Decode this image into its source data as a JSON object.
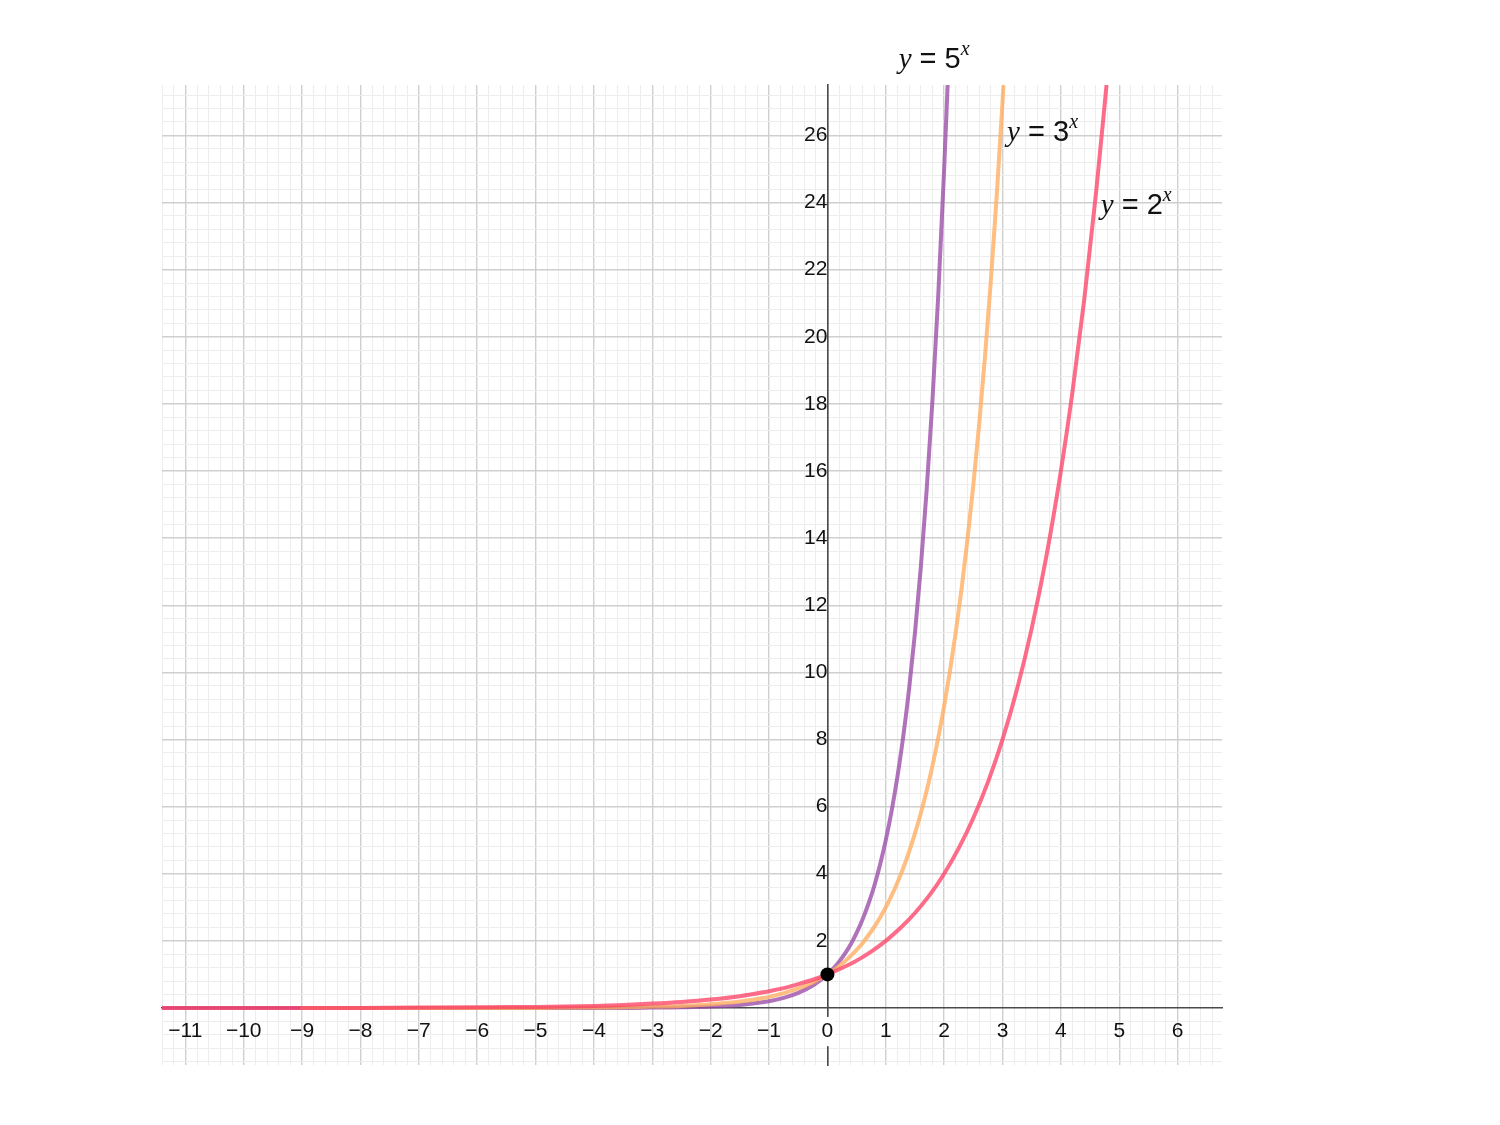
{
  "chart_data": {
    "type": "line",
    "xlim": [
      -11.4,
      6.76
    ],
    "ylim": [
      -1.7,
      27.5
    ],
    "xticks": [
      {
        "value": -11.4,
        "label": null
      },
      {
        "value": -11.2,
        "label": null
      },
      {
        "value": -11,
        "label": "−11"
      },
      {
        "value": -10.8,
        "label": null
      },
      {
        "value": -10.6,
        "label": null
      },
      {
        "value": -10.4,
        "label": null
      },
      {
        "value": -10.2,
        "label": null
      },
      {
        "value": -10,
        "label": "−10"
      },
      {
        "value": -9.8,
        "label": null
      },
      {
        "value": -9.6,
        "label": null
      },
      {
        "value": -9.4,
        "label": null
      },
      {
        "value": -9.2,
        "label": null
      },
      {
        "value": -9,
        "label": "−9"
      },
      {
        "value": -8.8,
        "label": null
      },
      {
        "value": -8.6,
        "label": null
      },
      {
        "value": -8.4,
        "label": null
      },
      {
        "value": -8.2,
        "label": null
      },
      {
        "value": -8,
        "label": "−8"
      },
      {
        "value": -7.8,
        "label": null
      },
      {
        "value": -7.6,
        "label": null
      },
      {
        "value": -7.4,
        "label": null
      },
      {
        "value": -7.2,
        "label": null
      },
      {
        "value": -7,
        "label": "−7"
      },
      {
        "value": -6.8,
        "label": null
      },
      {
        "value": -6.6,
        "label": null
      },
      {
        "value": -6.4,
        "label": null
      },
      {
        "value": -6.2,
        "label": null
      },
      {
        "value": -6,
        "label": "−6"
      },
      {
        "value": -5.8,
        "label": null
      },
      {
        "value": -5.6,
        "label": null
      },
      {
        "value": -5.4,
        "label": null
      },
      {
        "value": -5.2,
        "label": null
      },
      {
        "value": -5,
        "label": "−5"
      },
      {
        "value": -4.8,
        "label": null
      },
      {
        "value": -4.6,
        "label": null
      },
      {
        "value": -4.4,
        "label": null
      },
      {
        "value": -4.2,
        "label": null
      },
      {
        "value": -4,
        "label": "−4"
      },
      {
        "value": -3.8,
        "label": null
      },
      {
        "value": -3.6,
        "label": null
      },
      {
        "value": -3.4,
        "label": null
      },
      {
        "value": -3.2,
        "label": null
      },
      {
        "value": -3,
        "label": "−3"
      },
      {
        "value": -2.8,
        "label": null
      },
      {
        "value": -2.6,
        "label": null
      },
      {
        "value": -2.4,
        "label": null
      },
      {
        "value": -2.2,
        "label": null
      },
      {
        "value": -2,
        "label": "−2"
      },
      {
        "value": -1.8,
        "label": null
      },
      {
        "value": -1.6,
        "label": null
      },
      {
        "value": -1.4,
        "label": null
      },
      {
        "value": -1.2,
        "label": null
      },
      {
        "value": -1,
        "label": "−1"
      },
      {
        "value": -0.8,
        "label": null
      },
      {
        "value": -0.6,
        "label": null
      },
      {
        "value": -0.4,
        "label": null
      },
      {
        "value": -0.2,
        "label": null
      },
      0,
      {
        "value": 0.2,
        "label": null
      },
      {
        "value": 0.4,
        "label": null
      },
      {
        "value": 0.6,
        "label": null
      },
      {
        "value": 0.8,
        "label": null
      },
      1,
      {
        "value": 1.2,
        "label": null
      },
      {
        "value": 1.4,
        "label": null
      },
      {
        "value": 1.6,
        "label": null
      },
      {
        "value": 1.8,
        "label": null
      },
      2,
      {
        "value": 2.2,
        "label": null
      },
      {
        "value": 2.4,
        "label": null
      },
      {
        "value": 2.6,
        "label": null
      },
      {
        "value": 2.8,
        "label": null
      },
      3,
      {
        "value": 3.2,
        "label": null
      },
      {
        "value": 3.4,
        "label": null
      },
      {
        "value": 3.6,
        "label": null
      },
      {
        "value": 3.8,
        "label": null
      },
      4,
      {
        "value": 4.2,
        "label": null
      },
      {
        "value": 4.4,
        "label": null
      },
      {
        "value": 4.6,
        "label": null
      },
      {
        "value": 4.8,
        "label": null
      },
      5,
      {
        "value": 5.2,
        "label": null
      },
      {
        "value": 5.4,
        "label": null
      },
      {
        "value": 5.6,
        "label": null
      },
      {
        "value": 5.8,
        "label": null
      },
      6,
      {
        "value": 6.2,
        "label": null
      },
      {
        "value": 6.4,
        "label": null
      },
      {
        "value": 6.6,
        "label": null
      }
    ],
    "yticks": [
      {
        "value": -1.6,
        "label": null
      },
      {
        "value": -1.2,
        "label": null
      },
      {
        "value": -0.8,
        "label": null
      },
      {
        "value": -0.4,
        "label": null
      },
      {
        "value": 0,
        "label": null
      },
      {
        "value": 0.4,
        "label": null
      },
      {
        "value": 0.8,
        "label": null
      },
      {
        "value": 1.2,
        "label": null
      },
      {
        "value": 1.6,
        "label": null
      },
      2,
      {
        "value": 2.4,
        "label": null
      },
      {
        "value": 2.8,
        "label": null
      },
      {
        "value": 3.2,
        "label": null
      },
      {
        "value": 3.6,
        "label": null
      },
      4,
      {
        "value": 4.4,
        "label": null
      },
      {
        "value": 4.8,
        "label": null
      },
      {
        "value": 5.2,
        "label": null
      },
      {
        "value": 5.6,
        "label": null
      },
      6,
      {
        "value": 6.4,
        "label": null
      },
      {
        "value": 6.8,
        "label": null
      },
      {
        "value": 7.2,
        "label": null
      },
      {
        "value": 7.6,
        "label": null
      },
      8,
      {
        "value": 8.4,
        "label": null
      },
      {
        "value": 8.8,
        "label": null
      },
      {
        "value": 9.2,
        "label": null
      },
      {
        "value": 9.6,
        "label": null
      },
      10,
      {
        "value": 10.4,
        "label": null
      },
      {
        "value": 10.8,
        "label": null
      },
      {
        "value": 11.2,
        "label": null
      },
      {
        "value": 11.6,
        "label": null
      },
      12,
      {
        "value": 12.4,
        "label": null
      },
      {
        "value": 12.8,
        "label": null
      },
      {
        "value": 13.2,
        "label": null
      },
      {
        "value": 13.6,
        "label": null
      },
      14,
      {
        "value": 14.4,
        "label": null
      },
      {
        "value": 14.8,
        "label": null
      },
      {
        "value": 15.2,
        "label": null
      },
      {
        "value": 15.6,
        "label": null
      },
      16,
      {
        "value": 16.4,
        "label": null
      },
      {
        "value": 16.8,
        "label": null
      },
      {
        "value": 17.2,
        "label": null
      },
      {
        "value": 17.6,
        "label": null
      },
      18,
      {
        "value": 18.4,
        "label": null
      },
      {
        "value": 18.8,
        "label": null
      },
      {
        "value": 19.2,
        "label": null
      },
      {
        "value": 19.6,
        "label": null
      },
      20,
      {
        "value": 20.4,
        "label": null
      },
      {
        "value": 20.8,
        "label": null
      },
      {
        "value": 21.2,
        "label": null
      },
      {
        "value": 21.6,
        "label": null
      },
      22,
      {
        "value": 22.4,
        "label": null
      },
      {
        "value": 22.8,
        "label": null
      },
      {
        "value": 23.2,
        "label": null
      },
      {
        "value": 23.6,
        "label": null
      },
      24,
      {
        "value": 24.4,
        "label": null
      },
      {
        "value": 24.8,
        "label": null
      },
      {
        "value": 25.2,
        "label": null
      },
      {
        "value": 25.6,
        "label": null
      },
      26,
      {
        "value": 26.4,
        "label": null
      },
      {
        "value": 26.8,
        "label": null
      },
      {
        "value": 27.2,
        "label": null
      }
    ],
    "grid": true,
    "series": [
      {
        "name": "y = 5$^{x}$",
        "color": "#9a4aa6",
        "x": [
          -11.4,
          -11,
          -10,
          -9,
          -8,
          -7,
          -6,
          -5,
          -4.5,
          -4,
          -3.5,
          -3,
          -2.5,
          -2,
          -1.5,
          -1,
          -0.75,
          -0.5,
          -0.25,
          0,
          0.1,
          0.2,
          0.3,
          0.4,
          0.5,
          0.6,
          0.7,
          0.8,
          0.9,
          1,
          1.1,
          1.2,
          1.3,
          1.4,
          1.5,
          1.6,
          1.7,
          1.8,
          1.9,
          2,
          2.059
        ],
        "values": [
          0,
          0,
          0,
          0,
          0,
          0,
          0,
          0,
          0,
          0,
          0,
          0.01,
          0.02,
          0.04,
          0.09,
          0.2,
          0.3,
          0.45,
          0.67,
          1,
          1.17,
          1.38,
          1.62,
          1.9,
          2.24,
          2.63,
          3.09,
          3.62,
          4.26,
          5,
          5.87,
          6.9,
          8.1,
          9.52,
          11.18,
          13.13,
          15.43,
          18.12,
          21.28,
          25,
          27.49
        ]
      },
      {
        "name": "y = 3$^{x}$",
        "color": "#ffac5f",
        "x": [
          -9,
          -8,
          -7,
          -6,
          -5,
          -4.5,
          -4,
          -3.5,
          -3,
          -2.5,
          -2,
          -1.5,
          -1,
          -0.75,
          -0.5,
          -0.25,
          0,
          0.1,
          0.2,
          0.3,
          0.4,
          0.5,
          0.6,
          0.7,
          0.8,
          0.9,
          1,
          1.1,
          1.2,
          1.3,
          1.4,
          1.5,
          1.6,
          1.7,
          1.8,
          1.9,
          2,
          2.1,
          2.2,
          2.3,
          2.4,
          2.5,
          2.6,
          2.7,
          2.8,
          2.9,
          3,
          3.015
        ],
        "values": [
          0,
          0,
          0,
          0,
          0,
          0.01,
          0.01,
          0.02,
          0.04,
          0.06,
          0.11,
          0.19,
          0.33,
          0.44,
          0.58,
          0.76,
          1,
          1.12,
          1.25,
          1.39,
          1.55,
          1.73,
          1.93,
          2.16,
          2.41,
          2.69,
          3,
          3.35,
          3.74,
          4.17,
          4.66,
          5.2,
          5.8,
          6.47,
          7.22,
          8.06,
          9,
          10.05,
          11.21,
          12.51,
          13.97,
          15.59,
          17.4,
          19.42,
          21.67,
          24.19,
          27,
          27.45
        ]
      },
      {
        "name": "y = 2$^{x}$",
        "color": "#fd4468",
        "x": [
          -11.4,
          -11,
          -10,
          -9,
          -8,
          -7,
          -6,
          -5,
          -4.5,
          -4,
          -3.5,
          -3,
          -2.5,
          -2,
          -1.5,
          -1,
          -0.75,
          -0.5,
          -0.25,
          0,
          0.25,
          0.5,
          0.75,
          1,
          1.25,
          1.5,
          1.75,
          2,
          2.25,
          2.5,
          2.75,
          3,
          3.25,
          3.5,
          3.75,
          4,
          4.2,
          4.4,
          4.6,
          4.78
        ],
        "values": [
          0,
          0,
          0,
          0,
          0,
          0.01,
          0.02,
          0.03,
          0.04,
          0.06,
          0.09,
          0.13,
          0.18,
          0.25,
          0.35,
          0.5,
          0.59,
          0.71,
          0.84,
          1,
          1.19,
          1.41,
          1.68,
          2,
          2.38,
          2.83,
          3.36,
          4,
          4.76,
          5.66,
          6.73,
          8,
          9.51,
          11.31,
          13.45,
          16,
          18.38,
          21.11,
          24.25,
          27.47
        ]
      },
      {
        "type": "scatter",
        "color": "#000000",
        "marker": "circle",
        "x": [
          0
        ],
        "values": [
          1
        ]
      }
    ]
  }
}
